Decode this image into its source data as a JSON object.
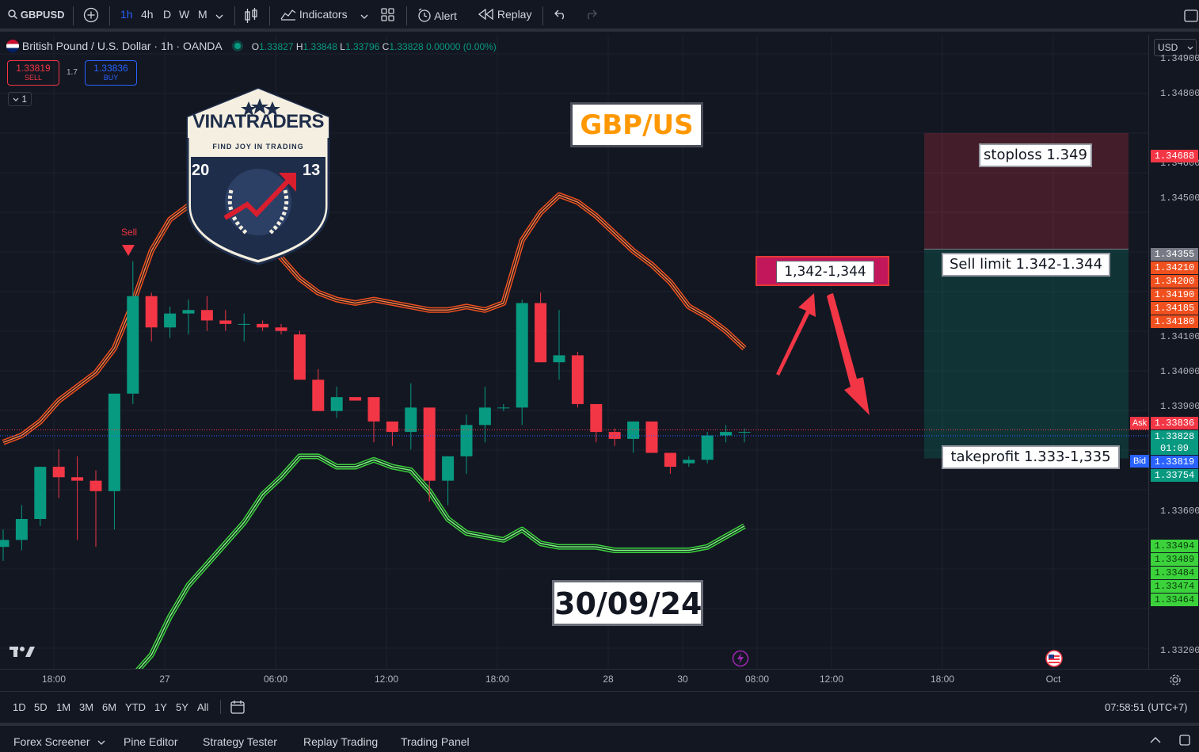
{
  "toolbar": {
    "symbol": "GBPUSD",
    "intervals": [
      "1h",
      "4h",
      "D",
      "W",
      "M"
    ],
    "indicators_label": "Indicators",
    "alert_label": "Alert",
    "replay_label": "Replay"
  },
  "legend": {
    "title": "British Pound / U.S. Dollar · 1h · OANDA",
    "o_label": "O",
    "o": "1.33827",
    "h_label": "H",
    "h": "1.33848",
    "l_label": "L",
    "l": "1.33796",
    "c_label": "C",
    "c": "1.33828",
    "change": "0.00000 (0.00%)"
  },
  "trade": {
    "sell_price": "1.33819",
    "sell_label": "SELL",
    "spread": "1.7",
    "buy_price": "1.33836",
    "buy_label": "BUY",
    "collapse_count": "1"
  },
  "currency": "USD",
  "logo": {
    "name": "VINATRADERS",
    "tagline": "FIND JOY IN TRADING",
    "year_left": "20",
    "year_right": "13"
  },
  "annotations": {
    "pair": "GBP/US",
    "zone": "1,342-1,344",
    "date": "30/09/24",
    "sell_marker": "Sell",
    "stoploss": "stoploss 1.349",
    "sell_limit": "Sell limit 1.342-1.344",
    "takeprofit": "takeprofit 1.333-1,335"
  },
  "price_axis": {
    "ticks": [
      "1.34900",
      "1.34800",
      "1.34600",
      "1.34500",
      "1.34100",
      "1.34000",
      "1.33900",
      "1.33600",
      "1.33200"
    ],
    "tags": [
      {
        "text": "1.34688",
        "color": "#f23645"
      },
      {
        "text": "1.34355",
        "color": "#787b86"
      },
      {
        "text": "1.34210",
        "color": "#f0501e"
      },
      {
        "text": "1.34200",
        "color": "#f0501e"
      },
      {
        "text": "1.34190",
        "color": "#f0501e"
      },
      {
        "text": "1.34185",
        "color": "#f0501e"
      },
      {
        "text": "1.34180",
        "color": "#f0501e"
      },
      {
        "text": "1.33836",
        "color": "#f23645"
      },
      {
        "text": "1.33828",
        "color": "#089981"
      },
      {
        "text": "01:09",
        "color": "#089981"
      },
      {
        "text": "1.33819",
        "color": "#2962ff"
      },
      {
        "text": "1.33754",
        "color": "#089981"
      },
      {
        "text": "1.33494",
        "color": "#3cd23c"
      },
      {
        "text": "1.33489",
        "color": "#3cd23c"
      },
      {
        "text": "1.33484",
        "color": "#3cd23c"
      },
      {
        "text": "1.33474",
        "color": "#3cd23c"
      },
      {
        "text": "1.33464",
        "color": "#3cd23c"
      }
    ],
    "ask_label": "Ask",
    "bid_label": "Bid"
  },
  "time_axis": [
    "18:00",
    "27",
    "06:00",
    "12:00",
    "18:00",
    "28",
    "30",
    "08:00",
    "12:00",
    "18:00",
    "Oct"
  ],
  "ranges": [
    "1D",
    "5D",
    "1M",
    "3M",
    "6M",
    "YTD",
    "1Y",
    "5Y",
    "All"
  ],
  "clock": "07:58:51 (UTC+7)",
  "bottom_tabs": [
    "Forex Screener",
    "Pine Editor",
    "Strategy Tester",
    "Replay Trading",
    "Trading Panel"
  ],
  "chart_data": {
    "type": "candlestick",
    "symbol": "GBPUSD",
    "interval": "1h",
    "ylim": [
      1.3315,
      1.3497
    ],
    "candles": [
      {
        "o": 1.335,
        "h": 1.3355,
        "l": 1.3346,
        "c": 1.3352
      },
      {
        "o": 1.3352,
        "h": 1.3362,
        "l": 1.3349,
        "c": 1.3358
      },
      {
        "o": 1.3358,
        "h": 1.3373,
        "l": 1.3356,
        "c": 1.3373
      },
      {
        "o": 1.3373,
        "h": 1.3378,
        "l": 1.3364,
        "c": 1.337
      },
      {
        "o": 1.337,
        "h": 1.3376,
        "l": 1.3352,
        "c": 1.3369
      },
      {
        "o": 1.3369,
        "h": 1.3372,
        "l": 1.335,
        "c": 1.3366
      },
      {
        "o": 1.3366,
        "h": 1.3394,
        "l": 1.3355,
        "c": 1.3394
      },
      {
        "o": 1.3394,
        "h": 1.3432,
        "l": 1.3391,
        "c": 1.3422
      },
      {
        "o": 1.3422,
        "h": 1.3423,
        "l": 1.3409,
        "c": 1.3413
      },
      {
        "o": 1.3413,
        "h": 1.3419,
        "l": 1.341,
        "c": 1.3417
      },
      {
        "o": 1.3417,
        "h": 1.3421,
        "l": 1.3411,
        "c": 1.3418
      },
      {
        "o": 1.3418,
        "h": 1.3422,
        "l": 1.3412,
        "c": 1.3415
      },
      {
        "o": 1.3415,
        "h": 1.3418,
        "l": 1.3412,
        "c": 1.3414
      },
      {
        "o": 1.3414,
        "h": 1.3417,
        "l": 1.3409,
        "c": 1.3414
      },
      {
        "o": 1.3414,
        "h": 1.3415,
        "l": 1.3412,
        "c": 1.3413
      },
      {
        "o": 1.3413,
        "h": 1.3414,
        "l": 1.3411,
        "c": 1.3412
      },
      {
        "o": 1.3411,
        "h": 1.3412,
        "l": 1.3398,
        "c": 1.3398
      },
      {
        "o": 1.3398,
        "h": 1.3401,
        "l": 1.3389,
        "c": 1.3389
      },
      {
        "o": 1.3389,
        "h": 1.3396,
        "l": 1.3387,
        "c": 1.3393
      },
      {
        "o": 1.3393,
        "h": 1.3393,
        "l": 1.3392,
        "c": 1.3392
      },
      {
        "o": 1.3393,
        "h": 1.3393,
        "l": 1.338,
        "c": 1.3386
      },
      {
        "o": 1.3386,
        "h": 1.3386,
        "l": 1.3379,
        "c": 1.3383
      },
      {
        "o": 1.3383,
        "h": 1.3397,
        "l": 1.3378,
        "c": 1.339
      },
      {
        "o": 1.339,
        "h": 1.339,
        "l": 1.3363,
        "c": 1.3369
      },
      {
        "o": 1.3369,
        "h": 1.3376,
        "l": 1.3362,
        "c": 1.3376
      },
      {
        "o": 1.3376,
        "h": 1.3388,
        "l": 1.3371,
        "c": 1.3385
      },
      {
        "o": 1.3385,
        "h": 1.3396,
        "l": 1.338,
        "c": 1.339
      },
      {
        "o": 1.339,
        "h": 1.3391,
        "l": 1.3389,
        "c": 1.339
      },
      {
        "o": 1.339,
        "h": 1.3421,
        "l": 1.3385,
        "c": 1.342
      },
      {
        "o": 1.342,
        "h": 1.3423,
        "l": 1.3403,
        "c": 1.3403
      },
      {
        "o": 1.3403,
        "h": 1.3418,
        "l": 1.3398,
        "c": 1.3405
      },
      {
        "o": 1.3405,
        "h": 1.3406,
        "l": 1.339,
        "c": 1.3391
      },
      {
        "o": 1.3391,
        "h": 1.3391,
        "l": 1.338,
        "c": 1.3383
      },
      {
        "o": 1.3383,
        "h": 1.3384,
        "l": 1.3379,
        "c": 1.3381
      },
      {
        "o": 1.3381,
        "h": 1.3386,
        "l": 1.3377,
        "c": 1.3386
      },
      {
        "o": 1.3386,
        "h": 1.3386,
        "l": 1.3377,
        "c": 1.3377
      },
      {
        "o": 1.3377,
        "h": 1.3377,
        "l": 1.3371,
        "c": 1.3373
      },
      {
        "o": 1.3374,
        "h": 1.3376,
        "l": 1.3373,
        "c": 1.3375
      },
      {
        "o": 1.3375,
        "h": 1.3383,
        "l": 1.3374,
        "c": 1.3382
      },
      {
        "o": 1.3382,
        "h": 1.3385,
        "l": 1.338,
        "c": 1.3383
      },
      {
        "o": 1.3383,
        "h": 1.3384,
        "l": 1.338,
        "c": 1.3383
      }
    ],
    "upper_band": [
      1.338,
      1.3382,
      1.3386,
      1.3392,
      1.3396,
      1.34,
      1.3407,
      1.342,
      1.3435,
      1.3444,
      1.3448,
      1.3449,
      1.3447,
      1.3443,
      1.3438,
      1.3433,
      1.3427,
      1.3423,
      1.3421,
      1.342,
      1.3421,
      1.342,
      1.3419,
      1.3418,
      1.3418,
      1.3419,
      1.3418,
      1.342,
      1.3438,
      1.3446,
      1.3451,
      1.3449,
      1.3445,
      1.344,
      1.3435,
      1.3431,
      1.3426,
      1.3419,
      1.3416,
      1.3412,
      1.3407
    ],
    "lower_band": [
      1.3306,
      1.3306,
      1.3306,
      1.3306,
      1.3306,
      1.3306,
      1.3306,
      1.3313,
      1.3319,
      1.333,
      1.3339,
      1.3345,
      1.3351,
      1.3357,
      1.3365,
      1.337,
      1.3376,
      1.3376,
      1.3373,
      1.3373,
      1.3375,
      1.3373,
      1.3372,
      1.3366,
      1.3358,
      1.3354,
      1.3353,
      1.3352,
      1.3355,
      1.3351,
      1.335,
      1.335,
      1.335,
      1.3349,
      1.3349,
      1.3349,
      1.3349,
      1.3349,
      1.335,
      1.3353,
      1.3356
    ],
    "stoploss": 1.34688,
    "sell_limit": 1.34355,
    "takeprofit": 1.33754
  }
}
